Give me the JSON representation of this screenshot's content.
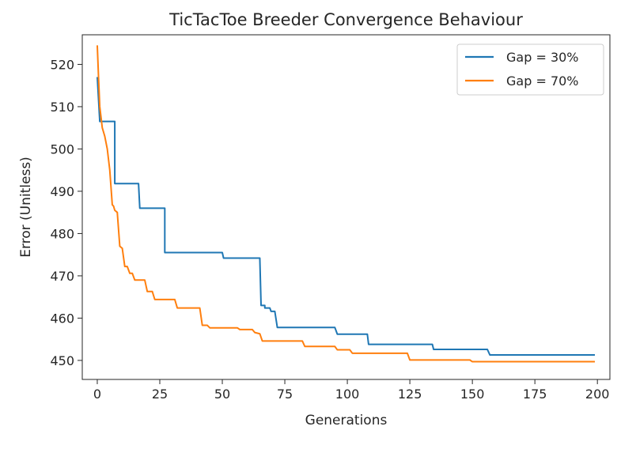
{
  "chart_data": {
    "type": "line",
    "title": "TicTacToe Breeder Convergence Behaviour",
    "xlabel": "Generations",
    "ylabel": "Error (Unitless)",
    "xlim": [
      -6,
      205
    ],
    "ylim": [
      445.5,
      527
    ],
    "xticks": [
      0,
      25,
      50,
      75,
      100,
      125,
      150,
      175,
      200
    ],
    "yticks": [
      450,
      460,
      470,
      480,
      490,
      500,
      510,
      520
    ],
    "grid": false,
    "legend": "upper right",
    "series": [
      {
        "name": "Gap = 30%",
        "color": "#1f77b4",
        "points": [
          [
            0,
            517
          ],
          [
            1,
            506.5
          ],
          [
            7,
            506.5
          ],
          [
            7,
            491.8
          ],
          [
            16.5,
            491.8
          ],
          [
            17,
            486
          ],
          [
            27,
            486
          ],
          [
            27,
            475.5
          ],
          [
            50,
            475.5
          ],
          [
            50.5,
            474.2
          ],
          [
            65,
            474.2
          ],
          [
            65.5,
            463
          ],
          [
            67,
            463
          ],
          [
            67,
            462.4
          ],
          [
            69,
            462.4
          ],
          [
            69.5,
            461.6
          ],
          [
            71,
            461.6
          ],
          [
            72,
            457.8
          ],
          [
            95,
            457.8
          ],
          [
            96,
            456.2
          ],
          [
            108,
            456.2
          ],
          [
            108.5,
            453.8
          ],
          [
            134,
            453.8
          ],
          [
            134.5,
            452.6
          ],
          [
            156,
            452.6
          ],
          [
            157,
            451.3
          ],
          [
            199,
            451.3
          ]
        ]
      },
      {
        "name": "Gap = 70%",
        "color": "#ff7f0e",
        "points": [
          [
            0,
            524.5
          ],
          [
            0.5,
            517
          ],
          [
            1,
            510
          ],
          [
            2,
            505
          ],
          [
            3,
            503
          ],
          [
            4,
            500
          ],
          [
            5,
            495
          ],
          [
            6,
            486.8
          ],
          [
            6.5,
            486.5
          ],
          [
            7,
            485.5
          ],
          [
            8,
            485
          ],
          [
            9,
            477
          ],
          [
            10,
            476.5
          ],
          [
            11,
            472.2
          ],
          [
            12,
            472.2
          ],
          [
            13,
            470.6
          ],
          [
            14,
            470.6
          ],
          [
            15,
            469
          ],
          [
            19,
            469
          ],
          [
            20,
            466.3
          ],
          [
            22,
            466.3
          ],
          [
            23,
            464.4
          ],
          [
            31,
            464.4
          ],
          [
            32,
            462.4
          ],
          [
            41,
            462.4
          ],
          [
            42,
            458.3
          ],
          [
            44,
            458.3
          ],
          [
            45,
            457.7
          ],
          [
            56,
            457.7
          ],
          [
            57,
            457.3
          ],
          [
            62,
            457.3
          ],
          [
            63,
            456.6
          ],
          [
            65,
            456.3
          ],
          [
            66,
            454.6
          ],
          [
            82,
            454.6
          ],
          [
            83,
            453.3
          ],
          [
            95,
            453.3
          ],
          [
            96,
            452.5
          ],
          [
            101,
            452.5
          ],
          [
            102,
            451.7
          ],
          [
            124,
            451.7
          ],
          [
            125,
            450.1
          ],
          [
            149,
            450.1
          ],
          [
            150,
            449.7
          ],
          [
            199,
            449.7
          ]
        ]
      }
    ]
  }
}
